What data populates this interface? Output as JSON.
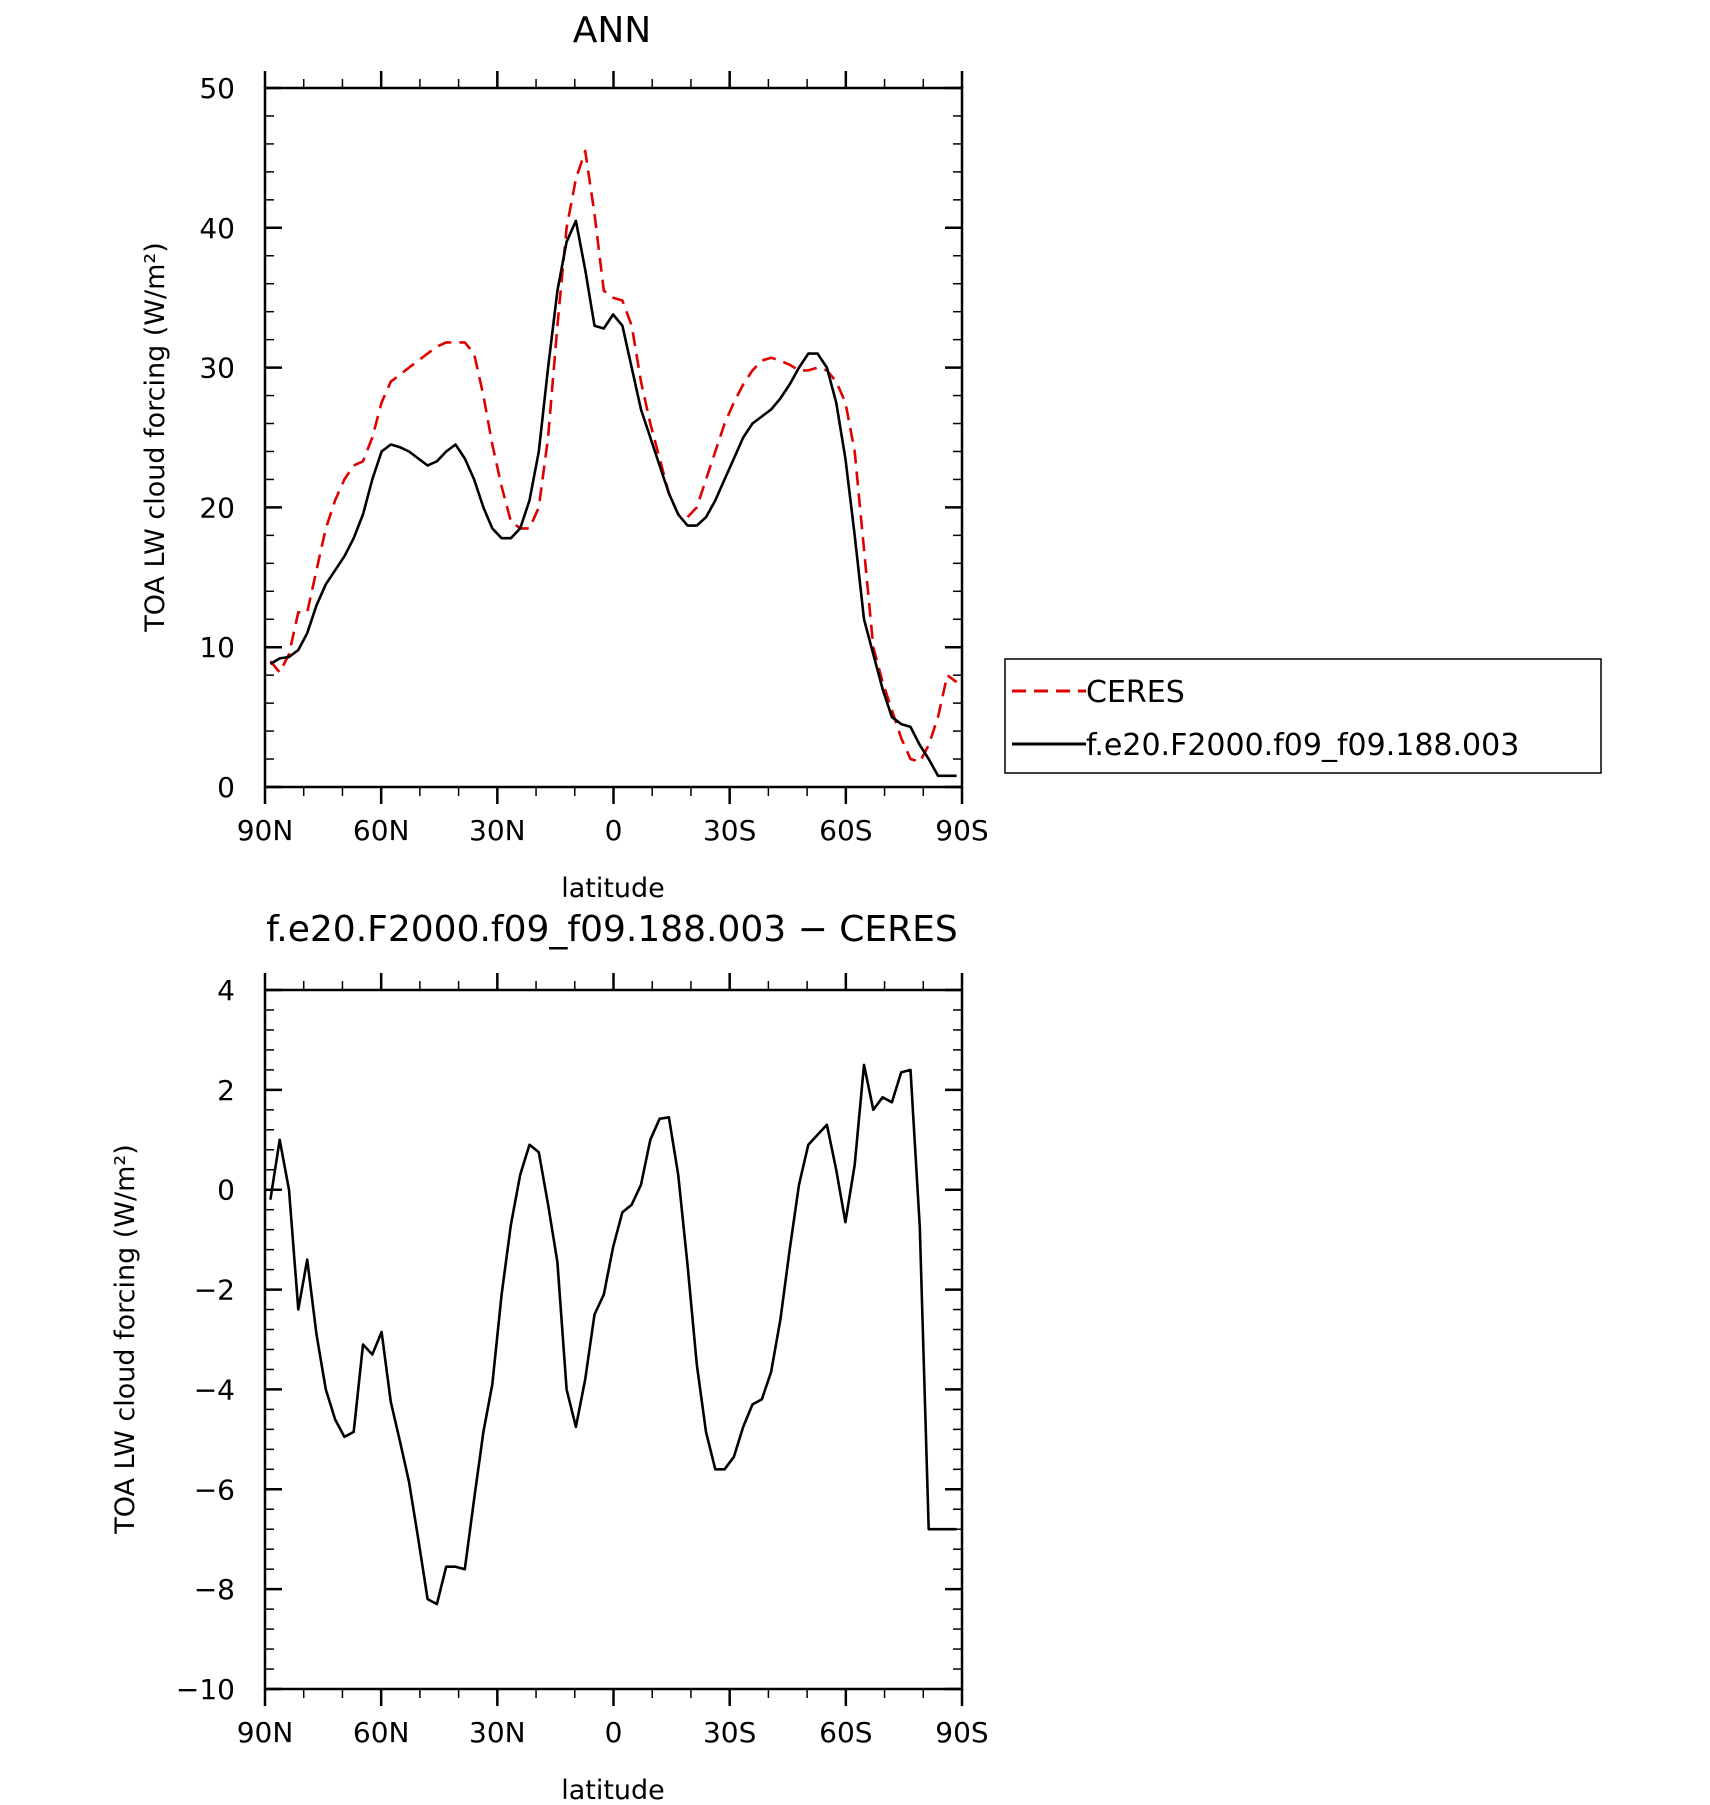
{
  "chart_data": [
    {
      "type": "line",
      "title": "ANN",
      "xlabel": "latitude",
      "ylabel": "TOA LW cloud forcing (W/m²)",
      "xlim": [
        90,
        -90
      ],
      "ylim": [
        0,
        50
      ],
      "yticks": [
        "0",
        "10",
        "20",
        "30",
        "40",
        "50"
      ],
      "xticks": [
        {
          "value": 90,
          "label": "90N"
        },
        {
          "value": 60,
          "label": "60N"
        },
        {
          "value": 30,
          "label": "30N"
        },
        {
          "value": 0,
          "label": "0"
        },
        {
          "value": -30,
          "label": "30S"
        },
        {
          "value": -60,
          "label": "60S"
        },
        {
          "value": -90,
          "label": "90S"
        }
      ],
      "legend_position": "right",
      "series": [
        {
          "name": "CERES",
          "color": "#e00000",
          "dash": "dashed",
          "x": [
            88.6,
            86.2,
            83.8,
            81.4,
            79.1,
            76.7,
            74.3,
            71.9,
            69.5,
            67.1,
            64.7,
            62.3,
            59.9,
            57.5,
            55.1,
            52.8,
            50.4,
            48.0,
            45.6,
            43.2,
            40.8,
            38.4,
            36.0,
            33.6,
            31.3,
            28.9,
            26.5,
            24.1,
            21.7,
            19.3,
            16.9,
            14.5,
            12.1,
            9.7,
            7.3,
            4.9,
            2.5,
            0.1,
            -2.3,
            -4.7,
            -7.1,
            -9.5,
            -11.9,
            -14.3,
            -16.7,
            -19.1,
            -21.5,
            -23.9,
            -26.3,
            -28.7,
            -31.1,
            -33.5,
            -35.9,
            -38.3,
            -40.7,
            -43.1,
            -45.5,
            -47.9,
            -50.3,
            -52.7,
            -55.1,
            -57.5,
            -59.9,
            -62.3,
            -64.7,
            -67.1,
            -69.5,
            -71.9,
            -74.3,
            -76.7,
            -79.1,
            -81.4,
            -83.8,
            -86.2,
            -88.6
          ],
          "y": [
            9.0,
            8.2,
            9.5,
            12.5,
            12.5,
            15.5,
            18.5,
            20.5,
            22.0,
            23.0,
            23.3,
            25.0,
            27.5,
            29.0,
            29.5,
            30.0,
            30.5,
            31.0,
            31.5,
            31.8,
            31.8,
            31.8,
            31.0,
            28.0,
            24.5,
            21.5,
            19.0,
            18.5,
            18.5,
            20.0,
            25.0,
            33.0,
            40.0,
            43.5,
            45.5,
            41.0,
            35.5,
            35.0,
            34.8,
            33.0,
            29.0,
            26.0,
            23.5,
            21.0,
            19.5,
            19.3,
            20.0,
            22.0,
            24.0,
            26.0,
            27.5,
            28.8,
            29.8,
            30.5,
            30.7,
            30.5,
            30.2,
            29.8,
            29.8,
            30.0,
            29.8,
            29.0,
            27.5,
            24.0,
            17.0,
            10.0,
            7.5,
            5.5,
            3.5,
            2.0,
            1.8,
            3.0,
            5.0,
            8.0,
            7.5
          ]
        },
        {
          "name": "f.e20.F2000.f09_f09.188.003",
          "color": "#000000",
          "dash": "solid",
          "x": [
            88.6,
            86.2,
            83.8,
            81.4,
            79.1,
            76.7,
            74.3,
            71.9,
            69.5,
            67.1,
            64.7,
            62.3,
            59.9,
            57.5,
            55.1,
            52.8,
            50.4,
            48.0,
            45.6,
            43.2,
            40.8,
            38.4,
            36.0,
            33.6,
            31.3,
            28.9,
            26.5,
            24.1,
            21.7,
            19.3,
            16.9,
            14.5,
            12.1,
            9.7,
            7.3,
            4.9,
            2.5,
            0.1,
            -2.3,
            -4.7,
            -7.1,
            -9.5,
            -11.9,
            -14.3,
            -16.7,
            -19.1,
            -21.5,
            -23.9,
            -26.3,
            -28.7,
            -31.1,
            -33.5,
            -35.9,
            -38.3,
            -40.7,
            -43.1,
            -45.5,
            -47.9,
            -50.3,
            -52.7,
            -55.1,
            -57.5,
            -59.9,
            -62.3,
            -64.7,
            -67.1,
            -69.5,
            -71.9,
            -74.3,
            -76.7,
            -79.1,
            -81.4,
            -83.8,
            -86.2,
            -88.6
          ],
          "y": [
            8.8,
            9.2,
            9.3,
            9.8,
            11.0,
            13.0,
            14.5,
            15.5,
            16.5,
            17.8,
            19.5,
            22.0,
            24.0,
            24.5,
            24.3,
            24.0,
            23.5,
            23.0,
            23.3,
            24.0,
            24.5,
            23.5,
            22.0,
            20.0,
            18.5,
            17.8,
            17.8,
            18.5,
            20.5,
            24.0,
            30.0,
            35.5,
            39.0,
            40.5,
            37.0,
            33.0,
            32.8,
            33.8,
            33.0,
            30.0,
            27.0,
            25.0,
            23.0,
            21.0,
            19.5,
            18.7,
            18.7,
            19.3,
            20.5,
            22.0,
            23.5,
            25.0,
            26.0,
            26.5,
            27.0,
            27.8,
            28.8,
            30.0,
            31.0,
            31.0,
            30.0,
            27.5,
            23.5,
            18.0,
            12.0,
            9.5,
            7.0,
            5.0,
            4.5,
            4.3,
            3.0,
            2.0,
            0.8,
            0.8,
            0.8
          ]
        }
      ]
    },
    {
      "type": "line",
      "title": "f.e20.F2000.f09_f09.188.003 − CERES",
      "xlabel": "latitude",
      "ylabel": "TOA LW cloud forcing (W/m²)",
      "xlim": [
        90,
        -90
      ],
      "ylim": [
        -10,
        4
      ],
      "yticks": [
        "−10",
        "−8",
        "−6",
        "−4",
        "−2",
        "0",
        "2",
        "4"
      ],
      "xticks": [
        {
          "value": 90,
          "label": "90N"
        },
        {
          "value": 60,
          "label": "60N"
        },
        {
          "value": 30,
          "label": "30N"
        },
        {
          "value": 0,
          "label": "0"
        },
        {
          "value": -30,
          "label": "30S"
        },
        {
          "value": -60,
          "label": "60S"
        },
        {
          "value": -90,
          "label": "90S"
        }
      ],
      "series": [
        {
          "color": "#000000",
          "dash": "solid",
          "x": [
            88.6,
            86.2,
            83.8,
            81.4,
            79.1,
            76.7,
            74.3,
            71.9,
            69.5,
            67.1,
            64.7,
            62.3,
            59.9,
            57.5,
            55.1,
            52.8,
            50.4,
            48.0,
            45.6,
            43.2,
            40.8,
            38.4,
            36.0,
            33.6,
            31.3,
            28.9,
            26.5,
            24.1,
            21.7,
            19.3,
            16.9,
            14.5,
            12.1,
            9.7,
            7.3,
            4.9,
            2.5,
            0.1,
            -2.3,
            -4.7,
            -7.1,
            -9.5,
            -11.9,
            -14.3,
            -16.7,
            -19.1,
            -21.5,
            -23.9,
            -26.3,
            -28.7,
            -31.1,
            -33.5,
            -35.9,
            -38.3,
            -40.7,
            -43.1,
            -45.5,
            -47.9,
            -50.3,
            -52.7,
            -55.1,
            -57.5,
            -59.9,
            -62.3,
            -64.7,
            -67.1,
            -69.5,
            -71.9,
            -74.3,
            -76.7,
            -79.1,
            -81.4,
            -83.8,
            -86.2,
            -88.6
          ],
          "y": [
            -0.2,
            1.0,
            0.0,
            -2.4,
            -1.4,
            -2.9,
            -4.0,
            -4.6,
            -4.95,
            -4.85,
            -3.1,
            -3.3,
            -2.85,
            -4.25,
            -5.05,
            -5.85,
            -7.0,
            -8.2,
            -8.3,
            -7.55,
            -7.55,
            -7.6,
            -6.2,
            -4.85,
            -3.9,
            -2.1,
            -0.7,
            0.3,
            0.9,
            0.75,
            -0.3,
            -1.45,
            -4.0,
            -4.75,
            -3.8,
            -2.5,
            -2.1,
            -1.15,
            -0.45,
            -0.3,
            0.1,
            1.0,
            1.42,
            1.45,
            0.3,
            -1.5,
            -3.5,
            -4.85,
            -5.6,
            -5.6,
            -5.35,
            -4.75,
            -4.3,
            -4.2,
            -3.65,
            -2.6,
            -1.2,
            0.1,
            0.9,
            1.1,
            1.3,
            0.4,
            -0.65,
            0.5,
            2.5,
            1.6,
            1.85,
            1.75,
            2.35,
            2.4,
            -0.75,
            -6.8,
            -6.8,
            -6.8,
            -6.8
          ]
        }
      ]
    }
  ]
}
